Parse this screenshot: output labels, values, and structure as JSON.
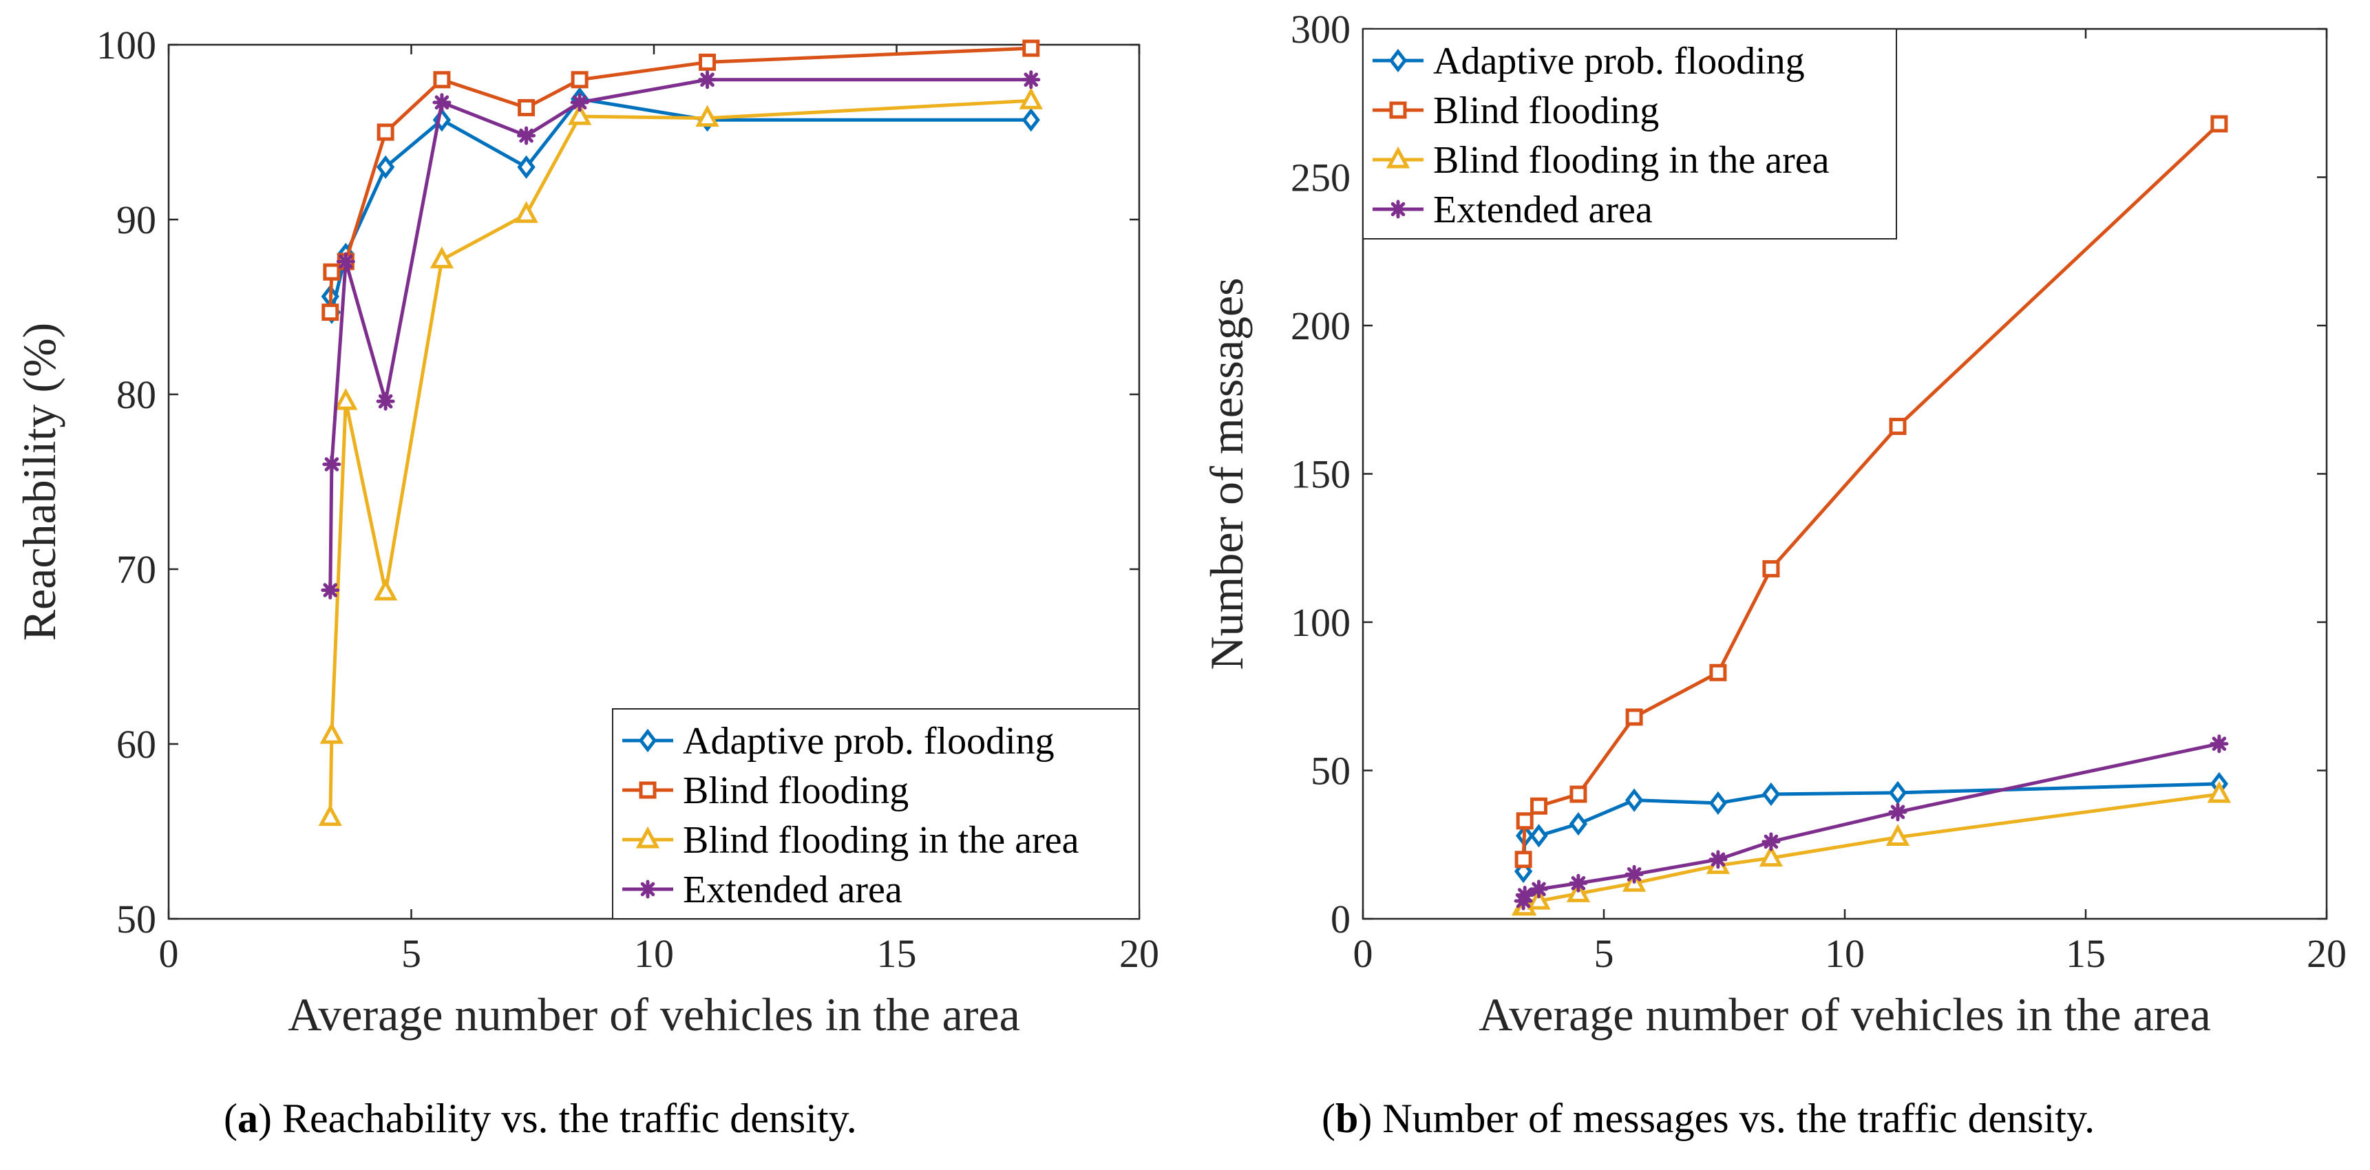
{
  "chart_data": [
    {
      "id": "a",
      "type": "line",
      "caption_letter": "a",
      "caption_text": ") Reachability vs. the traffic density.",
      "xlabel": "Average number of vehicles in the area",
      "ylabel": "Reachability (%)",
      "xlim": [
        0,
        20
      ],
      "ylim": [
        50,
        100
      ],
      "xticks": [
        0,
        5,
        10,
        15,
        20
      ],
      "yticks": [
        50,
        60,
        70,
        80,
        90,
        100
      ],
      "grid": false,
      "legend_position": "bottom-right",
      "series": [
        {
          "name": "Adaptive prob. flooding",
          "color": "#0072BD",
          "marker": "diamond",
          "x": [
            3.33,
            3.36,
            3.65,
            4.47,
            5.63,
            7.37,
            8.47,
            11.1,
            17.77
          ],
          "y": [
            85.6,
            84.7,
            88.0,
            93.0,
            95.7,
            93.0,
            96.9,
            95.7,
            95.7
          ]
        },
        {
          "name": "Blind flooding",
          "color": "#D95319",
          "marker": "square",
          "x": [
            3.33,
            3.36,
            3.65,
            4.47,
            5.63,
            7.37,
            8.47,
            11.1,
            17.77
          ],
          "y": [
            84.7,
            87.0,
            87.6,
            95.0,
            98.0,
            96.4,
            98.0,
            99.0,
            99.8
          ]
        },
        {
          "name": "Blind flooding in the area",
          "color": "#EDB120",
          "marker": "triangle",
          "x": [
            3.33,
            3.36,
            3.65,
            4.47,
            5.63,
            7.37,
            8.47,
            11.1,
            17.77
          ],
          "y": [
            55.8,
            60.5,
            79.6,
            68.7,
            87.7,
            90.3,
            95.9,
            95.8,
            96.8
          ]
        },
        {
          "name": "Extended area",
          "color": "#7E2F8E",
          "marker": "star",
          "x": [
            3.33,
            3.36,
            3.65,
            4.47,
            5.63,
            7.37,
            8.47,
            11.1,
            17.77
          ],
          "y": [
            68.8,
            76.0,
            87.6,
            79.6,
            96.7,
            94.8,
            96.7,
            98.0,
            98.0
          ]
        }
      ]
    },
    {
      "id": "b",
      "type": "line",
      "caption_letter": "b",
      "caption_text": ") Number of messages vs. the traffic density.",
      "xlabel": "Average number of vehicles in the area",
      "ylabel": "Number of messages",
      "xlim": [
        0,
        20
      ],
      "ylim": [
        0,
        300
      ],
      "xticks": [
        0,
        5,
        10,
        15,
        20
      ],
      "yticks": [
        0,
        50,
        100,
        150,
        200,
        250,
        300
      ],
      "grid": false,
      "legend_position": "top-left",
      "series": [
        {
          "name": "Adaptive prob. flooding",
          "color": "#0072BD",
          "marker": "diamond",
          "x": [
            3.33,
            3.36,
            3.65,
            4.47,
            5.63,
            7.37,
            8.47,
            11.1,
            17.77
          ],
          "y": [
            16,
            28,
            28,
            32,
            40,
            39,
            42,
            42.5,
            45.5
          ]
        },
        {
          "name": "Blind flooding",
          "color": "#D95319",
          "marker": "square",
          "x": [
            3.33,
            3.36,
            3.65,
            4.47,
            5.63,
            7.37,
            8.47,
            11.1,
            17.77
          ],
          "y": [
            20,
            33,
            38,
            42,
            68,
            83,
            118,
            166,
            268
          ]
        },
        {
          "name": "Blind flooding in the area",
          "color": "#EDB120",
          "marker": "triangle",
          "x": [
            3.33,
            3.36,
            3.65,
            4.47,
            5.63,
            7.37,
            8.47,
            11.1,
            17.77
          ],
          "y": [
            4,
            4,
            6,
            8.5,
            12,
            18,
            20.5,
            27.5,
            42
          ]
        },
        {
          "name": "Extended area",
          "color": "#7E2F8E",
          "marker": "star",
          "x": [
            3.33,
            3.36,
            3.65,
            4.47,
            5.63,
            7.37,
            8.47,
            11.1,
            17.77
          ],
          "y": [
            6,
            8,
            10,
            12,
            15,
            20,
            26,
            36,
            59
          ]
        }
      ]
    }
  ]
}
